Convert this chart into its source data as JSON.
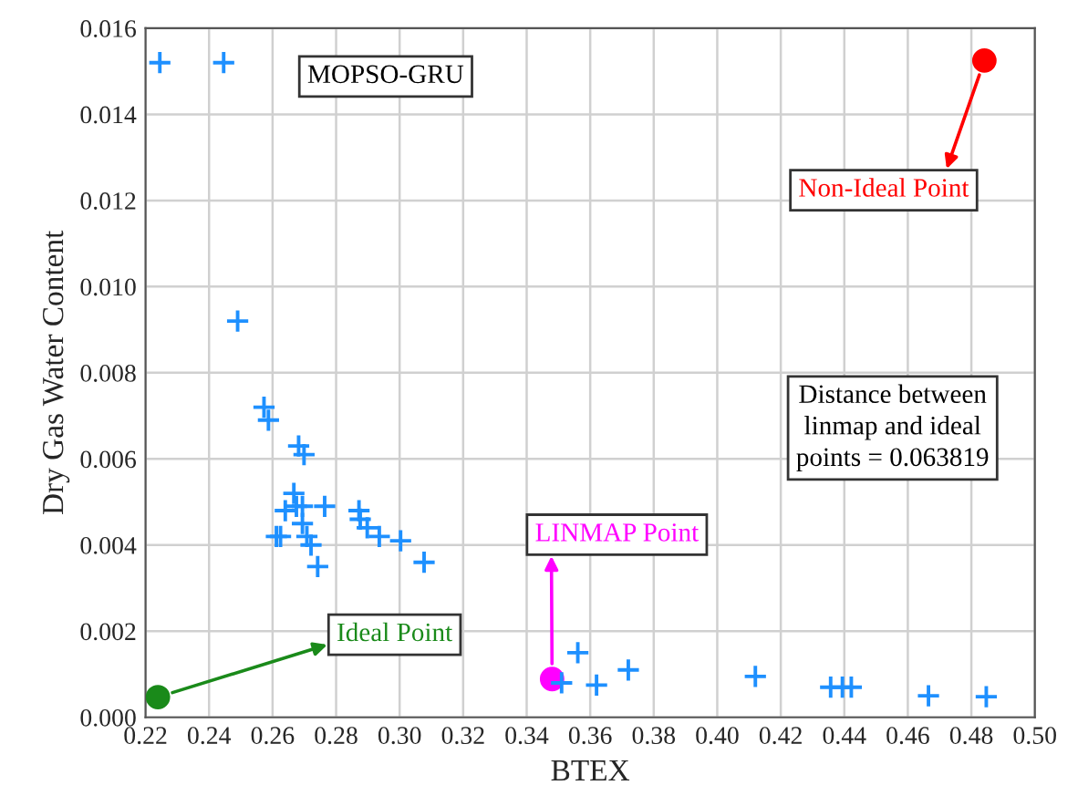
{
  "chart_data": {
    "type": "scatter",
    "xlabel": "BTEX",
    "ylabel": "Dry Gas Water Content",
    "xlim": [
      0.22,
      0.5
    ],
    "ylim": [
      0,
      0.016
    ],
    "xticks": [
      {
        "value": 0.22,
        "label": "0.22"
      },
      {
        "value": 0.24,
        "label": "0.24"
      },
      {
        "value": 0.26,
        "label": "0.26"
      },
      {
        "value": 0.28,
        "label": "0.28"
      },
      {
        "value": 0.3,
        "label": "0.30"
      },
      {
        "value": 0.32,
        "label": "0.32"
      },
      {
        "value": 0.34,
        "label": "0.34"
      },
      {
        "value": 0.36,
        "label": "0.36"
      },
      {
        "value": 0.38,
        "label": "0.38"
      },
      {
        "value": 0.4,
        "label": "0.40"
      },
      {
        "value": 0.42,
        "label": "0.42"
      },
      {
        "value": 0.44,
        "label": "0.44"
      },
      {
        "value": 0.46,
        "label": "0.46"
      },
      {
        "value": 0.48,
        "label": "0.48"
      },
      {
        "value": 0.5,
        "label": "0.50"
      }
    ],
    "yticks": [
      {
        "value": 0,
        "label": "0.000"
      },
      {
        "value": 0.002,
        "label": "0.002"
      },
      {
        "value": 0.004,
        "label": "0.004"
      },
      {
        "value": 0.006,
        "label": "0.006"
      },
      {
        "value": 0.008,
        "label": "0.008"
      },
      {
        "value": 0.01,
        "label": "0.010"
      },
      {
        "value": 0.012,
        "label": "0.012"
      },
      {
        "value": 0.014,
        "label": "0.014"
      },
      {
        "value": 0.016,
        "label": "0.016"
      }
    ],
    "grid": true,
    "series": [
      {
        "color": "#1e90ff",
        "marker": "cross",
        "x": [
          0.2245,
          0.2446,
          0.249,
          0.2573,
          0.2587,
          0.2682,
          0.2699,
          0.2667,
          0.264,
          0.2675,
          0.2694,
          0.2764,
          0.2694,
          0.2625,
          0.2612,
          0.2708,
          0.2721,
          0.2742,
          0.2872,
          0.2876,
          0.2898,
          0.2936,
          0.3003,
          0.3077,
          0.3561,
          0.351,
          0.362,
          0.372,
          0.412,
          0.4357,
          0.4394,
          0.4422,
          0.4665,
          0.4847
        ],
        "values": [
          0.0152,
          0.0152,
          0.0092,
          0.0072,
          0.0069,
          0.0063,
          0.0061,
          0.0052,
          0.0048,
          0.0049,
          0.0049,
          0.0049,
          0.0045,
          0.0042,
          0.0042,
          0.0042,
          0.004,
          0.0035,
          0.0048,
          0.0046,
          0.0044,
          0.0042,
          0.0041,
          0.0036,
          0.0015,
          0.0008,
          0.00075,
          0.0011,
          0.00095,
          0.0007,
          0.0007,
          0.0007,
          0.0005,
          0.00048
        ]
      },
      {
        "color": "#1a8a1a",
        "marker": "circle",
        "x": [
          0.2239
        ],
        "values": [
          0.00047
        ]
      },
      {
        "color": "#ff00ff",
        "marker": "circle",
        "x": [
          0.348
        ],
        "values": [
          0.00089
        ]
      },
      {
        "color": "#ff0000",
        "marker": "circle",
        "x": [
          0.4841
        ],
        "values": [
          0.01525
        ]
      }
    ],
    "annotations": [
      "MOPSO-GRU",
      {
        "text": "Ideal Point",
        "x": 0.2239,
        "y": 0.00047
      },
      {
        "text": "LINMAP Point",
        "x": 0.348,
        "y": 0.00089
      },
      {
        "text": "Non-Ideal Point",
        "x": 0.4841,
        "y": 0.01525
      },
      "Distance between\nlinmap and ideal\npoints = 0.063819"
    ]
  }
}
